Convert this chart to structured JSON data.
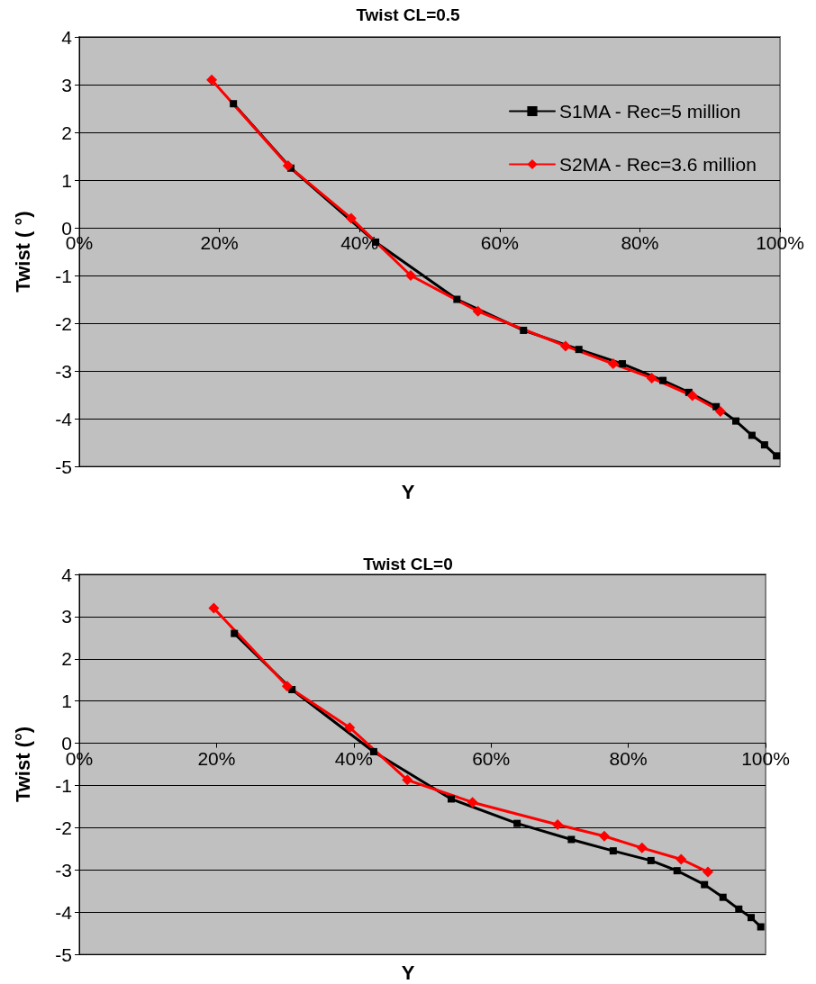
{
  "chart_data": [
    {
      "type": "line",
      "title": "Twist CL=0.5",
      "xlabel": "Y",
      "ylabel": "Twist ( °)",
      "xlim": [
        0,
        100
      ],
      "ylim": [
        -5,
        4
      ],
      "xticks": [
        {
          "value": 0,
          "label": "0%"
        },
        {
          "value": 20,
          "label": "20%"
        },
        {
          "value": 40,
          "label": "40%"
        },
        {
          "value": 60,
          "label": "60%"
        },
        {
          "value": 80,
          "label": "80%"
        },
        {
          "value": 100,
          "label": "100%"
        }
      ],
      "yticks": [
        -5,
        -4,
        -3,
        -2,
        -1,
        0,
        1,
        2,
        3,
        4
      ],
      "grid": "y",
      "legend": "top right",
      "series": [
        {
          "name": "S1MA - Rec=5 million",
          "color": "#000000",
          "marker": "square",
          "x": [
            22,
            30.2,
            42.3,
            53.9,
            63.4,
            71.3,
            77.5,
            83.3,
            87,
            90.9,
            93.7,
            96,
            97.8,
            99.5
          ],
          "values": [
            2.6,
            1.25,
            -0.3,
            -1.5,
            -2.15,
            -2.55,
            -2.85,
            -3.2,
            -3.45,
            -3.75,
            -4.05,
            -4.35,
            -4.55,
            -4.78
          ]
        },
        {
          "name": "S2MA - Rec=3.6 million",
          "color": "#ff0000",
          "marker": "diamond",
          "x": [
            18.9,
            29.8,
            38.8,
            47.3,
            56.9,
            69.4,
            76.2,
            81.7,
            87.5,
            91.5
          ],
          "values": [
            3.1,
            1.3,
            0.2,
            -1.0,
            -1.75,
            -2.48,
            -2.85,
            -3.15,
            -3.52,
            -3.85
          ]
        }
      ]
    },
    {
      "type": "line",
      "title": "Twist CL=0",
      "xlabel": "Y",
      "ylabel": "Twist (°)",
      "xlim": [
        0,
        100
      ],
      "ylim": [
        -5,
        4
      ],
      "xticks": [
        {
          "value": 0,
          "label": "0%"
        },
        {
          "value": 20,
          "label": "20%"
        },
        {
          "value": 40,
          "label": "40%"
        },
        {
          "value": 60,
          "label": "60%"
        },
        {
          "value": 80,
          "label": "80%"
        },
        {
          "value": 100,
          "label": "100%"
        }
      ],
      "yticks": [
        -5,
        -4,
        -3,
        -2,
        -1,
        0,
        1,
        2,
        3,
        4
      ],
      "grid": "y",
      "series": [
        {
          "color": "#000000",
          "marker": "square",
          "x": [
            22.6,
            31,
            42.9,
            54.2,
            63.8,
            71.7,
            77.8,
            83.3,
            87.1,
            91.1,
            93.8,
            96.1,
            97.9,
            99.3
          ],
          "values": [
            2.6,
            1.27,
            -0.2,
            -1.32,
            -1.9,
            -2.28,
            -2.55,
            -2.78,
            -3.02,
            -3.35,
            -3.65,
            -3.93,
            -4.13,
            -4.35
          ]
        },
        {
          "color": "#ff0000",
          "marker": "diamond",
          "x": [
            19.6,
            30.3,
            39.4,
            47.8,
            57.3,
            69.7,
            76.5,
            82,
            87.7,
            91.6
          ],
          "values": [
            3.2,
            1.35,
            0.37,
            -0.87,
            -1.4,
            -1.93,
            -2.2,
            -2.48,
            -2.75,
            -3.05
          ]
        }
      ]
    }
  ]
}
